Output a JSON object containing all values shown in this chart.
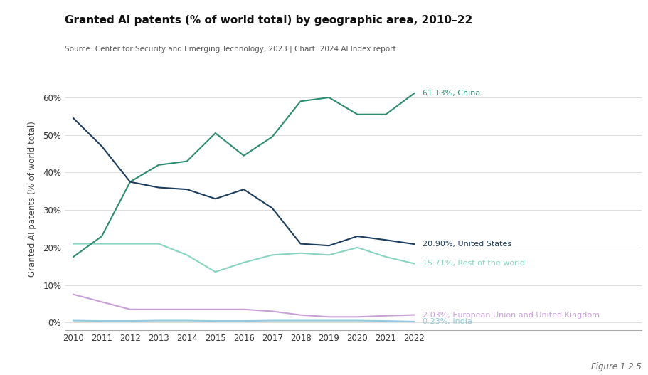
{
  "title": "Granted AI patents (% of world total) by geographic area, 2010–22",
  "subtitle": "Source: Center for Security and Emerging Technology, 2023 | Chart: 2024 AI Index report",
  "ylabel": "Granted AI patents (% of world total)",
  "years": [
    2010,
    2011,
    2012,
    2013,
    2014,
    2015,
    2016,
    2017,
    2018,
    2019,
    2020,
    2021,
    2022
  ],
  "china": [
    17.5,
    23.0,
    37.5,
    42.0,
    43.0,
    50.5,
    44.5,
    49.5,
    59.0,
    60.0,
    55.5,
    55.5,
    61.13
  ],
  "united_states": [
    54.5,
    47.0,
    37.5,
    36.0,
    35.5,
    33.0,
    35.5,
    30.5,
    21.0,
    20.5,
    23.0,
    22.0,
    20.9
  ],
  "rest_of_world": [
    21.0,
    21.0,
    21.0,
    21.0,
    18.0,
    13.5,
    16.0,
    18.0,
    18.5,
    18.0,
    20.0,
    17.5,
    15.71
  ],
  "eu_uk": [
    7.5,
    5.5,
    3.5,
    3.5,
    3.5,
    3.5,
    3.5,
    3.0,
    2.0,
    1.5,
    1.5,
    1.8,
    2.03
  ],
  "india": [
    0.5,
    0.4,
    0.4,
    0.5,
    0.5,
    0.4,
    0.4,
    0.5,
    0.5,
    0.5,
    0.5,
    0.4,
    0.23
  ],
  "china_label": "61.13%, China",
  "us_label": "20.90%, United States",
  "row_label": "15.71%, Rest of the world",
  "eu_label": "2.03%, European Union and United Kingdom",
  "india_label": "0.23%, India",
  "china_color": "#2d8b70",
  "us_color": "#1c3d5e",
  "row_color": "#88d4c0",
  "eu_color": "#c8a0d8",
  "india_color": "#90c8e0",
  "bg_color": "#ffffff",
  "figure_label": "Figure 1.2.5",
  "ylim": [
    -2,
    68
  ],
  "yticks": [
    0,
    10,
    20,
    30,
    40,
    50,
    60
  ]
}
